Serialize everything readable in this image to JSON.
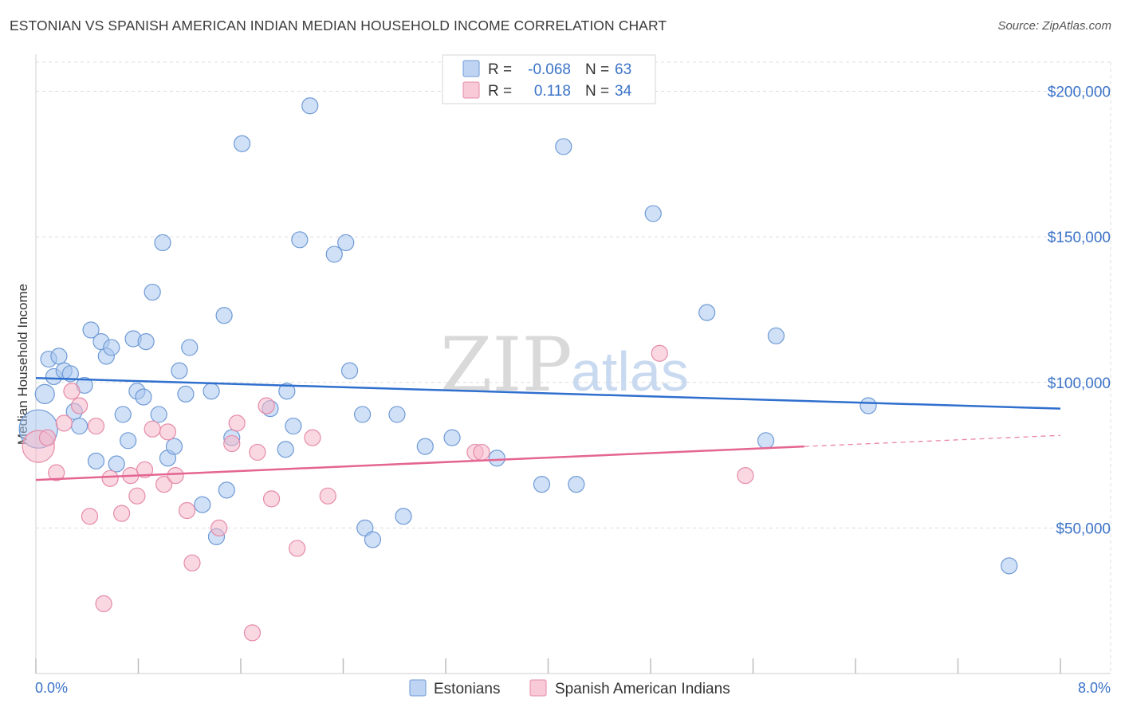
{
  "title": "ESTONIAN VS SPANISH AMERICAN INDIAN MEDIAN HOUSEHOLD INCOME CORRELATION CHART",
  "source": "Source: ZipAtlas.com",
  "watermark": {
    "zip": "ZIP",
    "atlas": "atlas"
  },
  "legend_top": {
    "rows": [
      {
        "r_label": "R =",
        "r_value": "-0.068",
        "n_label": "N =",
        "n_value": "63",
        "color": "#a9c6ef",
        "stroke": "#6e9ad6"
      },
      {
        "r_label": "R =",
        "r_value": "0.118",
        "n_label": "N =",
        "n_value": "34",
        "color": "#f6b8cb",
        "stroke": "#e58aa8"
      }
    ]
  },
  "legend_bottom": {
    "items": [
      {
        "label": "Estonians",
        "color": "#a9c6ef",
        "stroke": "#6e9ad6"
      },
      {
        "label": "Spanish American Indians",
        "color": "#f6b8cb",
        "stroke": "#e58aa8"
      }
    ]
  },
  "chart_data": {
    "type": "scatter",
    "title": "ESTONIAN VS SPANISH AMERICAN INDIAN MEDIAN HOUSEHOLD INCOME CORRELATION CHART",
    "xlabel": "",
    "ylabel": "Median Household Income",
    "xlim": [
      0,
      8.0
    ],
    "ylim": [
      0,
      210000
    ],
    "x_tick_labels": [
      "0.0%",
      "8.0%"
    ],
    "y_ticks": [
      50000,
      100000,
      150000,
      200000
    ],
    "y_tick_labels": [
      "$50,000",
      "$100,000",
      "$150,000",
      "$200,000"
    ],
    "grid": true,
    "legend_position": "top-center",
    "series": [
      {
        "name": "Estonians",
        "color": "#a9c6ef",
        "stroke": "#6e9ad6",
        "line_color": "#2f6fce",
        "trend": {
          "x": [
            0.0,
            8.0
          ],
          "y": [
            101500,
            91000
          ]
        },
        "points": [
          [
            0.02,
            84000,
            24
          ],
          [
            0.07,
            96000,
            12
          ],
          [
            0.1,
            108000,
            10
          ],
          [
            0.14,
            102000,
            10
          ],
          [
            0.18,
            109000,
            10
          ],
          [
            0.22,
            104000,
            10
          ],
          [
            0.27,
            103000,
            10
          ],
          [
            0.3,
            90000,
            10
          ],
          [
            0.34,
            85000,
            10
          ],
          [
            0.38,
            99000,
            10
          ],
          [
            0.43,
            118000,
            10
          ],
          [
            0.47,
            73000,
            10
          ],
          [
            0.51,
            114000,
            10
          ],
          [
            0.55,
            109000,
            10
          ],
          [
            0.59,
            112000,
            10
          ],
          [
            0.63,
            72000,
            10
          ],
          [
            0.68,
            89000,
            10
          ],
          [
            0.72,
            80000,
            10
          ],
          [
            0.76,
            115000,
            10
          ],
          [
            0.79,
            97000,
            10
          ],
          [
            0.84,
            95000,
            10
          ],
          [
            0.86,
            114000,
            10
          ],
          [
            0.91,
            131000,
            10
          ],
          [
            0.96,
            89000,
            10
          ],
          [
            0.99,
            148000,
            10
          ],
          [
            1.03,
            74000,
            10
          ],
          [
            1.08,
            78000,
            10
          ],
          [
            1.12,
            104000,
            10
          ],
          [
            1.17,
            96000,
            10
          ],
          [
            1.2,
            112000,
            10
          ],
          [
            1.3,
            58000,
            10
          ],
          [
            1.37,
            97000,
            10
          ],
          [
            1.41,
            47000,
            10
          ],
          [
            1.47,
            123000,
            10
          ],
          [
            1.49,
            63000,
            10
          ],
          [
            1.53,
            81000,
            10
          ],
          [
            1.61,
            182000,
            10
          ],
          [
            1.83,
            91000,
            10
          ],
          [
            1.95,
            77000,
            10
          ],
          [
            1.96,
            97000,
            10
          ],
          [
            2.01,
            85000,
            10
          ],
          [
            2.06,
            149000,
            10
          ],
          [
            2.14,
            195000,
            10
          ],
          [
            2.33,
            144000,
            10
          ],
          [
            2.42,
            148000,
            10
          ],
          [
            2.45,
            104000,
            10
          ],
          [
            2.55,
            89000,
            10
          ],
          [
            2.57,
            50000,
            10
          ],
          [
            2.63,
            46000,
            10
          ],
          [
            2.82,
            89000,
            10
          ],
          [
            2.87,
            54000,
            10
          ],
          [
            3.04,
            78000,
            10
          ],
          [
            3.25,
            81000,
            10
          ],
          [
            3.6,
            74000,
            10
          ],
          [
            3.95,
            65000,
            10
          ],
          [
            4.12,
            181000,
            10
          ],
          [
            4.22,
            65000,
            10
          ],
          [
            4.82,
            158000,
            10
          ],
          [
            5.24,
            124000,
            10
          ],
          [
            5.7,
            80000,
            10
          ],
          [
            5.78,
            116000,
            10
          ],
          [
            6.5,
            92000,
            10
          ],
          [
            7.6,
            37000,
            10
          ]
        ]
      },
      {
        "name": "Spanish American Indians",
        "color": "#f6b8cb",
        "stroke": "#e58aa8",
        "line_color": "#e46592",
        "trend": {
          "x": [
            0.0,
            6.0
          ],
          "y": [
            66500,
            78000
          ]
        },
        "trend_dashed": {
          "x": [
            6.0,
            8.0
          ],
          "y": [
            78000,
            81800
          ]
        },
        "points": [
          [
            0.02,
            78000,
            20
          ],
          [
            0.09,
            81000,
            10
          ],
          [
            0.16,
            69000,
            10
          ],
          [
            0.22,
            86000,
            10
          ],
          [
            0.28,
            97000,
            10
          ],
          [
            0.34,
            92000,
            10
          ],
          [
            0.42,
            54000,
            10
          ],
          [
            0.47,
            85000,
            10
          ],
          [
            0.53,
            24000,
            10
          ],
          [
            0.58,
            67000,
            10
          ],
          [
            0.67,
            55000,
            10
          ],
          [
            0.74,
            68000,
            10
          ],
          [
            0.79,
            61000,
            10
          ],
          [
            0.85,
            70000,
            10
          ],
          [
            0.91,
            84000,
            10
          ],
          [
            1.0,
            65000,
            10
          ],
          [
            1.03,
            83000,
            10
          ],
          [
            1.09,
            68000,
            10
          ],
          [
            1.18,
            56000,
            10
          ],
          [
            1.22,
            38000,
            10
          ],
          [
            1.43,
            50000,
            10
          ],
          [
            1.53,
            79000,
            10
          ],
          [
            1.57,
            86000,
            10
          ],
          [
            1.69,
            14000,
            10
          ],
          [
            1.73,
            76000,
            10
          ],
          [
            1.8,
            92000,
            10
          ],
          [
            1.84,
            60000,
            10
          ],
          [
            2.04,
            43000,
            10
          ],
          [
            2.16,
            81000,
            10
          ],
          [
            2.28,
            61000,
            10
          ],
          [
            3.43,
            76000,
            10
          ],
          [
            3.48,
            76000,
            10
          ],
          [
            5.54,
            68000,
            10
          ],
          [
            4.87,
            110000,
            10
          ]
        ]
      }
    ]
  }
}
